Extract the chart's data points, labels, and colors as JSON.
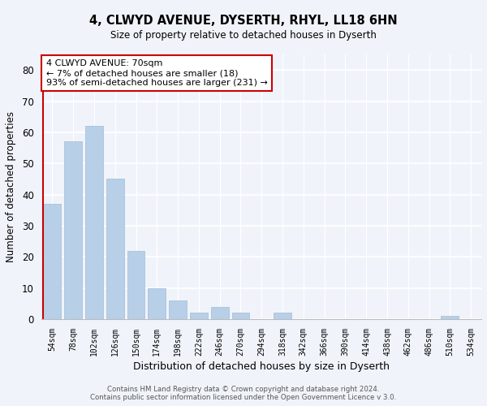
{
  "title": "4, CLWYD AVENUE, DYSERTH, RHYL, LL18 6HN",
  "subtitle": "Size of property relative to detached houses in Dyserth",
  "xlabel": "Distribution of detached houses by size in Dyserth",
  "ylabel": "Number of detached properties",
  "bar_color": "#b8cfe8",
  "bar_edge_color": "#a0bcd8",
  "marker_color": "#cc0000",
  "background_color": "#f0f4fa",
  "grid_color": "#ffffff",
  "bins": [
    "54sqm",
    "78sqm",
    "102sqm",
    "126sqm",
    "150sqm",
    "174sqm",
    "198sqm",
    "222sqm",
    "246sqm",
    "270sqm",
    "294sqm",
    "318sqm",
    "342sqm",
    "366sqm",
    "390sqm",
    "414sqm",
    "438sqm",
    "462sqm",
    "486sqm",
    "510sqm",
    "534sqm"
  ],
  "values": [
    37,
    57,
    62,
    45,
    22,
    10,
    6,
    2,
    4,
    2,
    0,
    2,
    0,
    0,
    0,
    0,
    0,
    0,
    0,
    1,
    0
  ],
  "marker_bin_index": 0,
  "ylim": [
    0,
    85
  ],
  "yticks": [
    0,
    10,
    20,
    30,
    40,
    50,
    60,
    70,
    80
  ],
  "annotation_title": "4 CLWYD AVENUE: 70sqm",
  "annotation_line1": "← 7% of detached houses are smaller (18)",
  "annotation_line2": "93% of semi-detached houses are larger (231) →",
  "footer1": "Contains HM Land Registry data © Crown copyright and database right 2024.",
  "footer2": "Contains public sector information licensed under the Open Government Licence v 3.0."
}
